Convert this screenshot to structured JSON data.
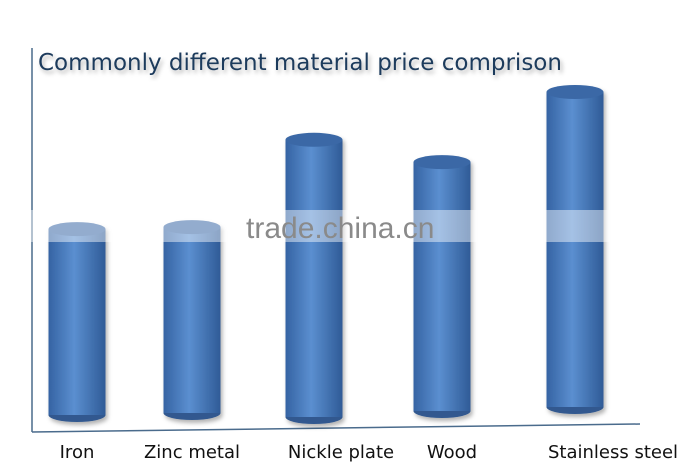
{
  "chart_data": {
    "type": "bar",
    "style": "3d-cylinder",
    "title": "Commonly different material price comprison",
    "xlabel": "",
    "ylabel": "",
    "categories": [
      "Iron",
      "Zinc metal",
      "Nickle plate",
      "Wood",
      "Stainless steel"
    ],
    "values": [
      59,
      59,
      88,
      79,
      100
    ],
    "value_scale": "relative (no axis values printed)",
    "ylim": [
      0,
      100
    ],
    "grid": false,
    "legend": "none",
    "bar_color": "#4a7ec0",
    "title_color": "#1f3b5c"
  },
  "watermark": "trade.china.cn"
}
